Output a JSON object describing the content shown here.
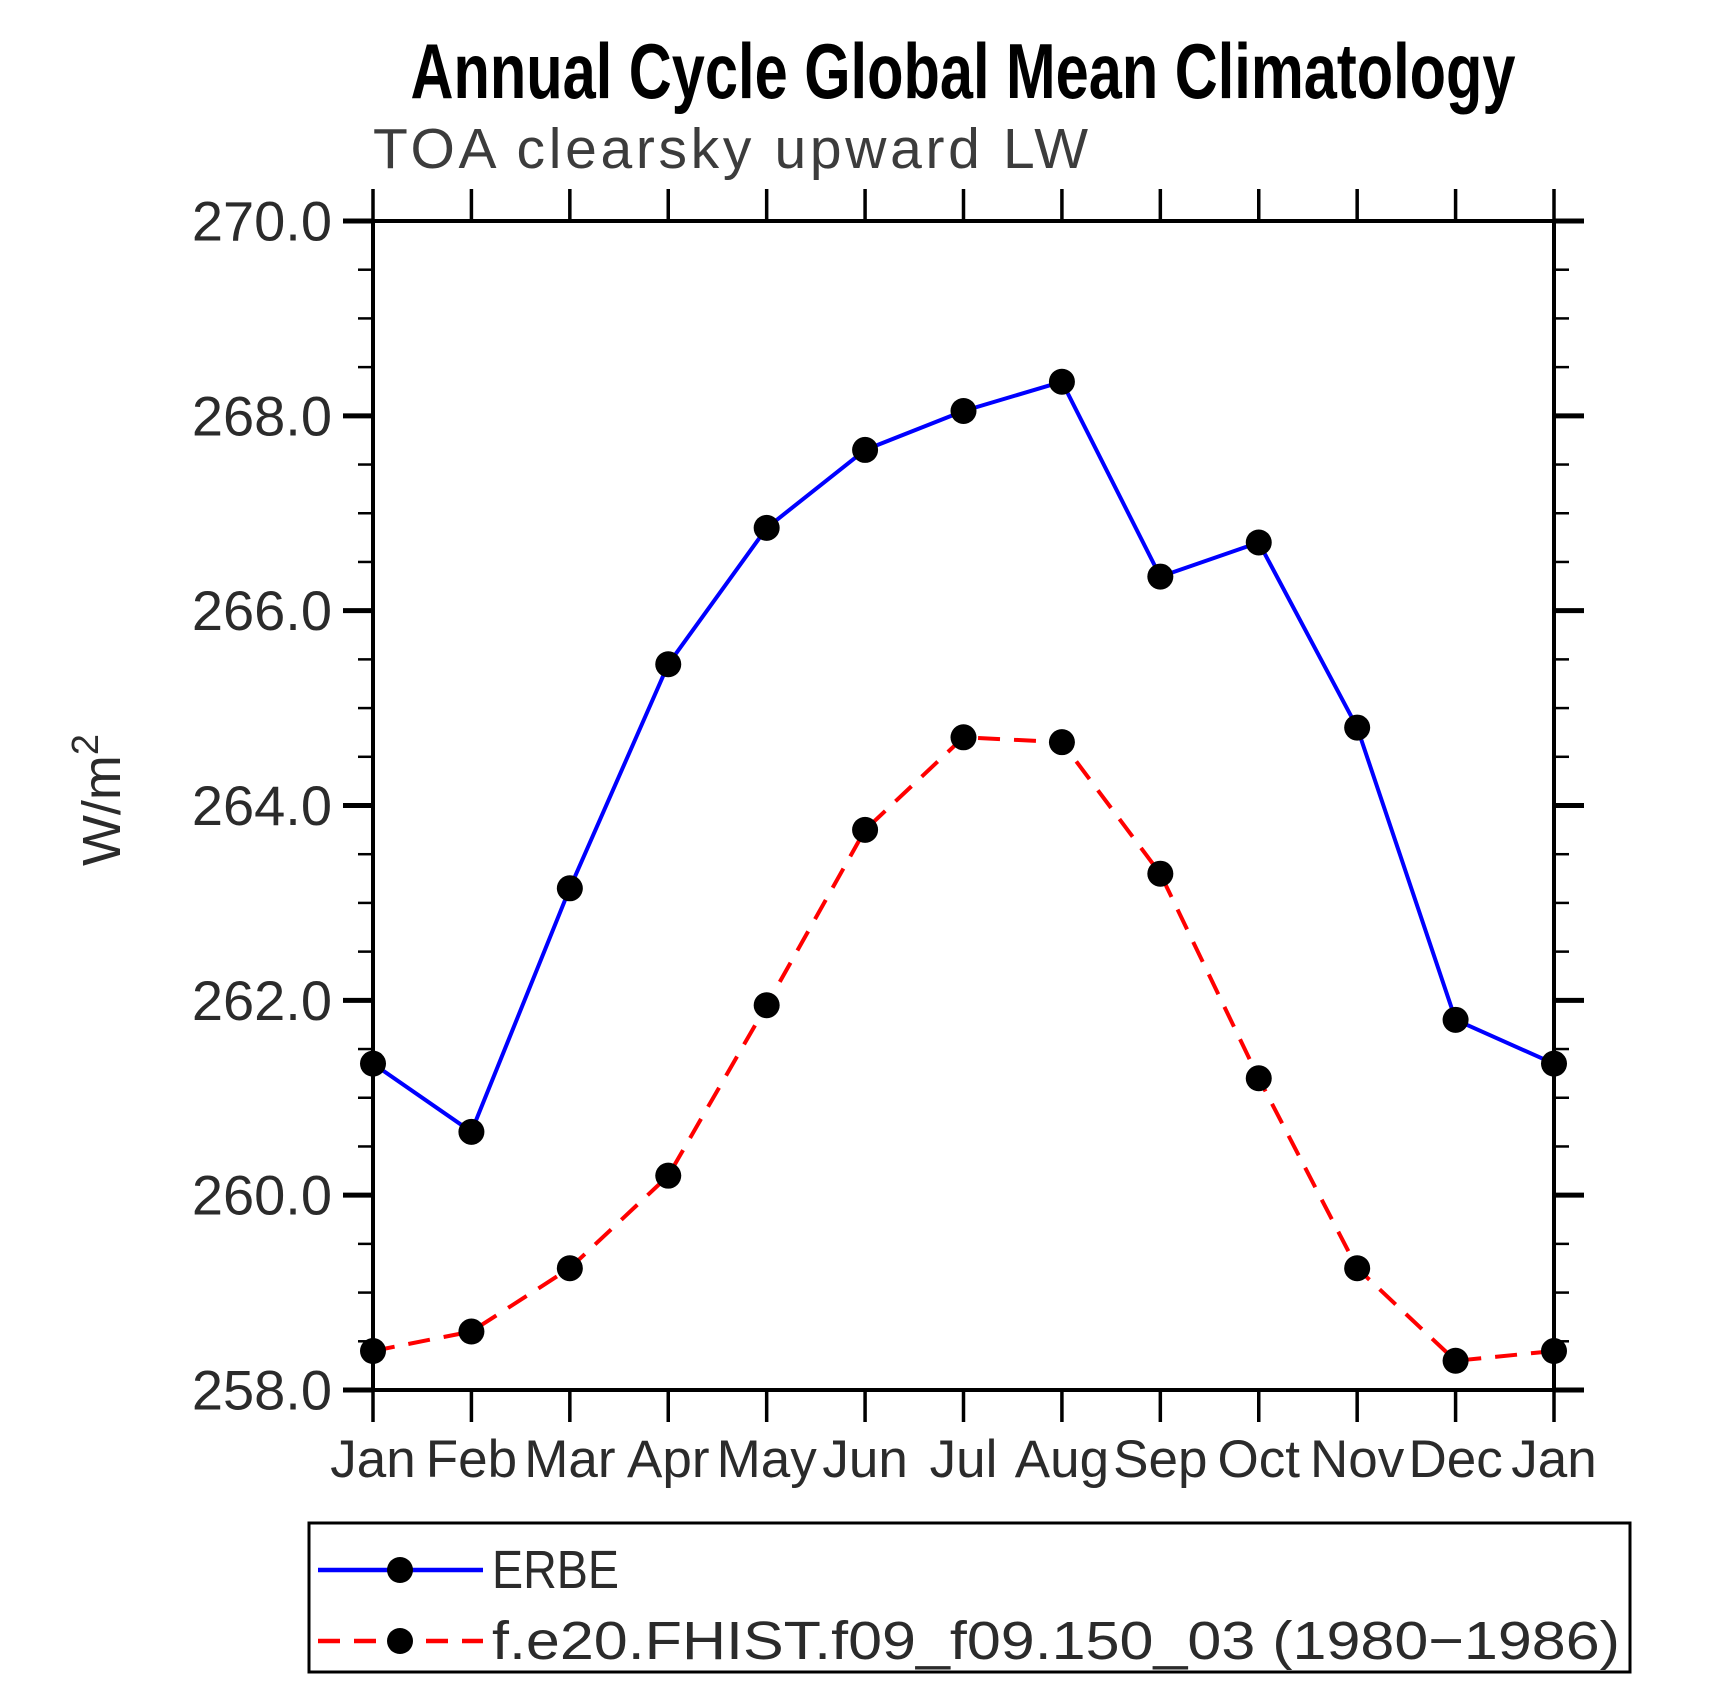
{
  "header": {
    "title": "Annual Cycle Global Mean Climatology",
    "subtitle": "TOA clearsky upward LW"
  },
  "axes": {
    "y_label_base": "W/m",
    "y_label_exp": "2",
    "y_tick_labels": [
      "270.0",
      "268.0",
      "266.0",
      "264.0",
      "262.0",
      "260.0",
      "258.0"
    ],
    "x_tick_labels": [
      "Jan",
      "Feb",
      "Mar",
      "Apr",
      "May",
      "Jun",
      "Jul",
      "Aug",
      "Sep",
      "Oct",
      "Nov",
      "Dec",
      "Jan"
    ]
  },
  "colors": {
    "erbe_line": "#0000ff",
    "model_line": "#ff0000",
    "marker": "#000000",
    "axis": "#000000"
  },
  "legend": {
    "entries": [
      {
        "label": "ERBE",
        "color": "#0000ff",
        "dash": "solid"
      },
      {
        "label": "f.e20.FHIST.f09_f09.150_03 (1980−1986)",
        "color": "#ff0000",
        "dash": "dashed"
      }
    ]
  },
  "chart_data": {
    "type": "line",
    "title": "Annual Cycle Global Mean Climatology",
    "subtitle": "TOA clearsky upward LW",
    "ylabel": "W/m2",
    "xlabel": "",
    "categories": [
      "Jan",
      "Feb",
      "Mar",
      "Apr",
      "May",
      "Jun",
      "Jul",
      "Aug",
      "Sep",
      "Oct",
      "Nov",
      "Dec",
      "Jan"
    ],
    "series": [
      {
        "name": "ERBE",
        "color": "#0000ff",
        "dash": "solid",
        "marker": "filled-circle",
        "values": [
          261.35,
          260.65,
          263.15,
          265.45,
          266.85,
          267.65,
          268.05,
          268.35,
          266.35,
          266.7,
          264.8,
          261.8,
          261.35
        ]
      },
      {
        "name": "f.e20.FHIST.f09_f09.150_03 (1980−1986)",
        "color": "#ff0000",
        "dash": "dashed",
        "marker": "filled-circle",
        "values": [
          258.4,
          258.6,
          259.25,
          260.2,
          261.95,
          263.75,
          264.7,
          264.65,
          263.3,
          261.2,
          259.25,
          258.3,
          258.4
        ]
      }
    ],
    "ylim": [
      258.0,
      270.0
    ],
    "ytick_interval": 2.0,
    "yminor_interval": 0.5,
    "grid": false,
    "legend_position": "bottom"
  }
}
